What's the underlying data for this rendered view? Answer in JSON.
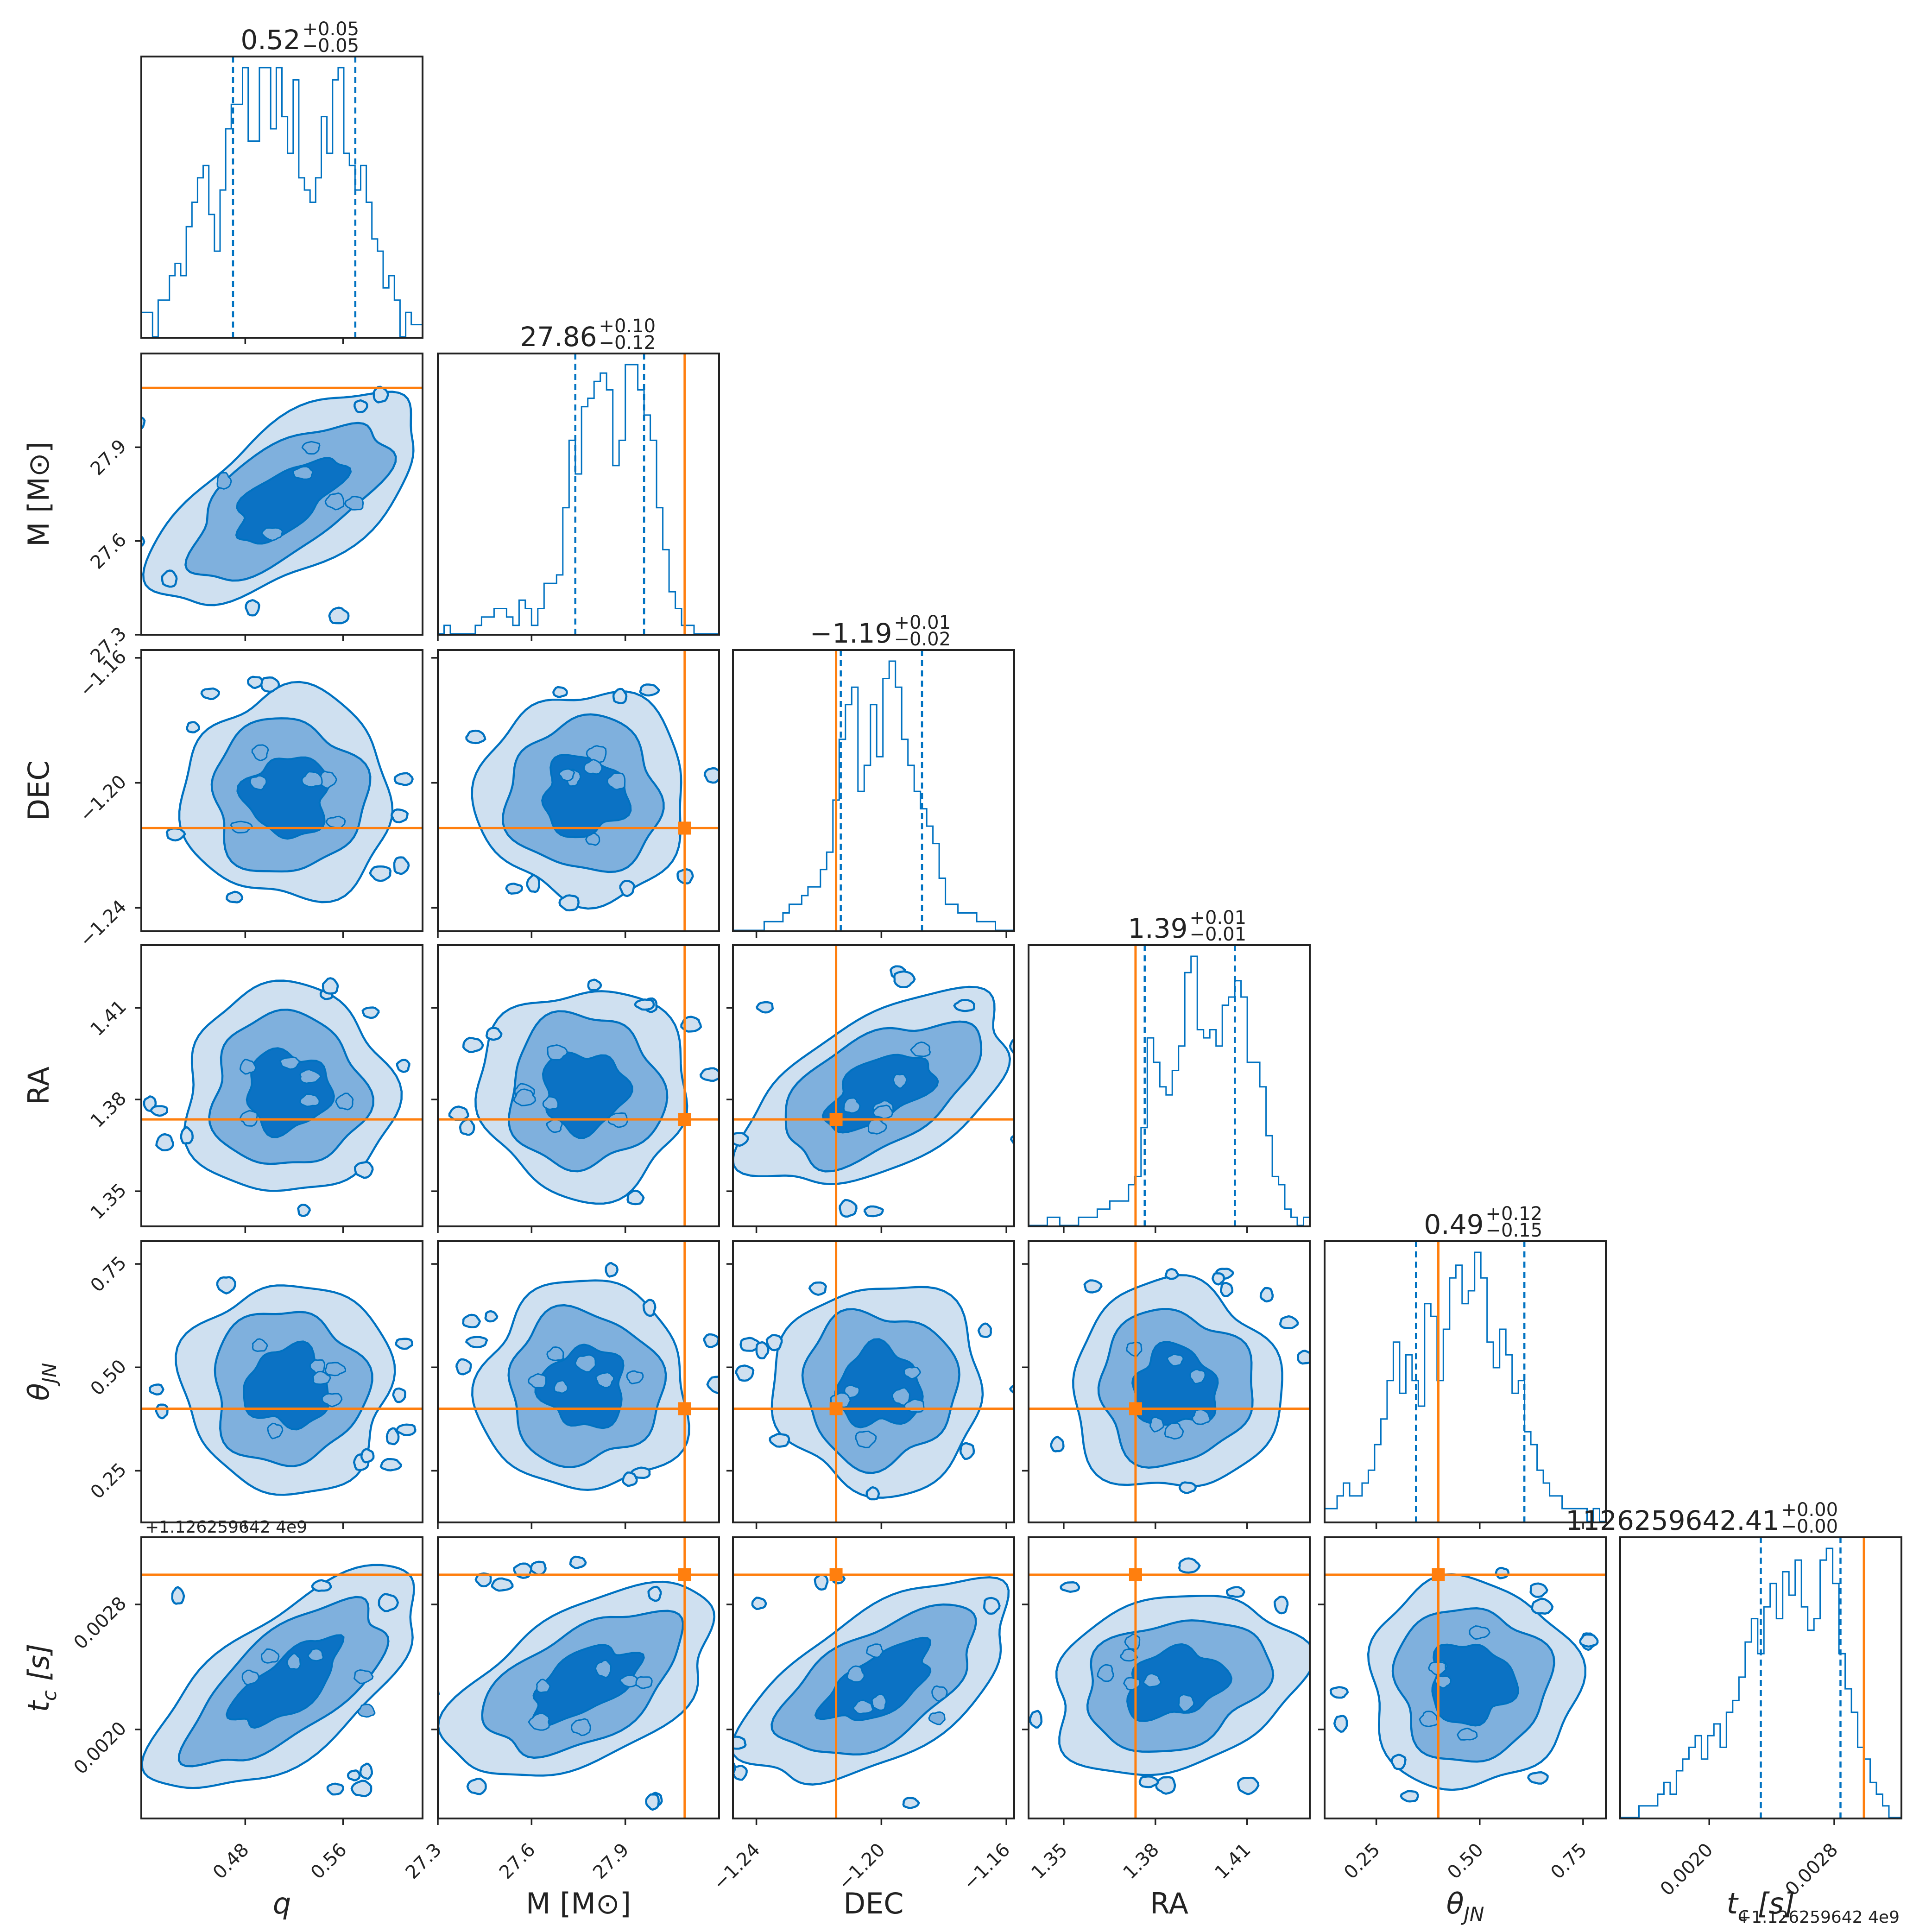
{
  "colors": {
    "posterior": "#0072c1",
    "level1": "#cfe0f0",
    "level2": "#7fb0dd",
    "level3": "#0b72c4",
    "truth": "#ff7f0e",
    "frame": "#222222"
  },
  "chart_data": {
    "type": "corner",
    "parameters": [
      {
        "key": "q",
        "label": "q",
        "range": [
          0.395,
          0.625
        ],
        "ticks": [
          0.48,
          0.56
        ],
        "tick_labels": [
          "0.48",
          "0.56"
        ],
        "truth": null,
        "quantiles": [
          0.47,
          0.57
        ],
        "summary": {
          "median": "0.52",
          "plus": "+0.05",
          "minus": "−0.05"
        },
        "hist": [
          2,
          2,
          0,
          3,
          3,
          5,
          6,
          5,
          9,
          11,
          13,
          14,
          10,
          7,
          12,
          17,
          19,
          19,
          22,
          16,
          16,
          22,
          22,
          17,
          22,
          18,
          15,
          21,
          13,
          12,
          11,
          13,
          18,
          15,
          21,
          22,
          15,
          14,
          12,
          14,
          11,
          8,
          7,
          4,
          5,
          3,
          0,
          2,
          1,
          1
        ]
      },
      {
        "key": "M",
        "label": "M [M⊙]",
        "range": [
          27.3,
          28.2
        ],
        "ticks": [
          27.3,
          27.6,
          27.9
        ],
        "tick_labels": [
          "27.3",
          "27.6",
          "27.9"
        ],
        "truth": 28.09,
        "quantiles": [
          27.74,
          27.96
        ],
        "summary": {
          "median": "27.86",
          "plus": "+0.10",
          "minus": "−0.12"
        },
        "hist": [
          0,
          1,
          0,
          0,
          0,
          0,
          1,
          2,
          2,
          3,
          3,
          2,
          1,
          4,
          3,
          1,
          3,
          6,
          6,
          7,
          15,
          23,
          19,
          27,
          28,
          30,
          31,
          29,
          20,
          23,
          32,
          32,
          29,
          26,
          23,
          15,
          10,
          5,
          3,
          1,
          1,
          0,
          0,
          0,
          0
        ]
      },
      {
        "key": "DEC",
        "label": "DEC",
        "range": [
          -1.2475,
          -1.1575
        ],
        "ticks": [
          -1.24,
          -1.2,
          -1.16
        ],
        "tick_labels": [
          "−1.24",
          "−1.20",
          "−1.16"
        ],
        "truth": -1.2145,
        "quantiles": [
          -1.213,
          -1.187
        ],
        "summary": {
          "median": "−1.19",
          "plus": "+0.01",
          "minus": "−0.02"
        },
        "hist": [
          0,
          0,
          0,
          0,
          0,
          1,
          1,
          1,
          2,
          3,
          3,
          4,
          5,
          5,
          7,
          9,
          15,
          22,
          26,
          28,
          16,
          19,
          26,
          20,
          29,
          31,
          28,
          22,
          19,
          16,
          14,
          12,
          10,
          6,
          3,
          3,
          2,
          2,
          2,
          1,
          1,
          1,
          0,
          0,
          0
        ]
      },
      {
        "key": "RA",
        "label": "RA",
        "range": [
          1.3385,
          1.4305
        ],
        "ticks": [
          1.35,
          1.38,
          1.41
        ],
        "tick_labels": [
          "1.35",
          "1.38",
          "1.41"
        ],
        "truth": 1.3735,
        "quantiles": [
          1.3765,
          1.406
        ],
        "summary": {
          "median": "1.39",
          "plus": "+0.01",
          "minus": "−0.01"
        },
        "hist": [
          0,
          0,
          0,
          1,
          1,
          0,
          0,
          0,
          1,
          1,
          1,
          2,
          2,
          3,
          3,
          3,
          5,
          6,
          12,
          23,
          20,
          17,
          16,
          19,
          22,
          31,
          33,
          24,
          23,
          24,
          22,
          27,
          28,
          30,
          28,
          20,
          20,
          17,
          11,
          6,
          5,
          2,
          1,
          0,
          1
        ]
      },
      {
        "key": "thetaJN",
        "label": "θ_JN",
        "range": [
          0.125,
          0.805
        ],
        "ticks": [
          0.25,
          0.5,
          0.75
        ],
        "tick_labels": [
          "0.25",
          "0.50",
          "0.75"
        ],
        "truth": 0.4,
        "quantiles": [
          0.346,
          0.608
        ],
        "summary": {
          "median": "0.49",
          "plus": "+0.12",
          "minus": "−0.15"
        },
        "hist": [
          1,
          1,
          2,
          3,
          2,
          2,
          3,
          4,
          6,
          8,
          11,
          14,
          10,
          13,
          11,
          9,
          17,
          16,
          11,
          15,
          19,
          20,
          17,
          18,
          21,
          19,
          14,
          12,
          15,
          13,
          10,
          11,
          7,
          6,
          4,
          3,
          2,
          2,
          1,
          1,
          1,
          1,
          0,
          1,
          0
        ]
      },
      {
        "key": "tc",
        "label": "t_c [s]",
        "range": [
          0.00143,
          0.00323
        ],
        "ticks": [
          0.002,
          0.0028
        ],
        "tick_labels": [
          "0.0020",
          "0.0028"
        ],
        "truth": 0.00299,
        "quantiles": [
          0.00233,
          0.00284
        ],
        "summary": {
          "median": "1126259642.41",
          "plus": "+0.00",
          "minus": "−0.00"
        },
        "hist": [
          0,
          0,
          0,
          1,
          1,
          1,
          2,
          3,
          2,
          4,
          5,
          6,
          7,
          5,
          7,
          8,
          6,
          9,
          10,
          12,
          15,
          17,
          14,
          18,
          20,
          17,
          21,
          19,
          22,
          18,
          16,
          17,
          22,
          23,
          20,
          14,
          11,
          9,
          6,
          5,
          3,
          2,
          1,
          0,
          0
        ]
      }
    ],
    "axis_labels": {
      "x": [
        "q",
        "M [M⊙]",
        "DEC",
        "RA",
        "θ",
        "t"
      ],
      "y": [
        "M [M⊙]",
        "DEC",
        "RA",
        "θ",
        "t"
      ],
      "subscripts": {
        "theta": "JN",
        "t": "c"
      }
    },
    "offset_text": "+1.126259642 4e9",
    "offset_text_bottom": "+1.126259642 4e9",
    "contour_levels": 3,
    "grid": false
  }
}
